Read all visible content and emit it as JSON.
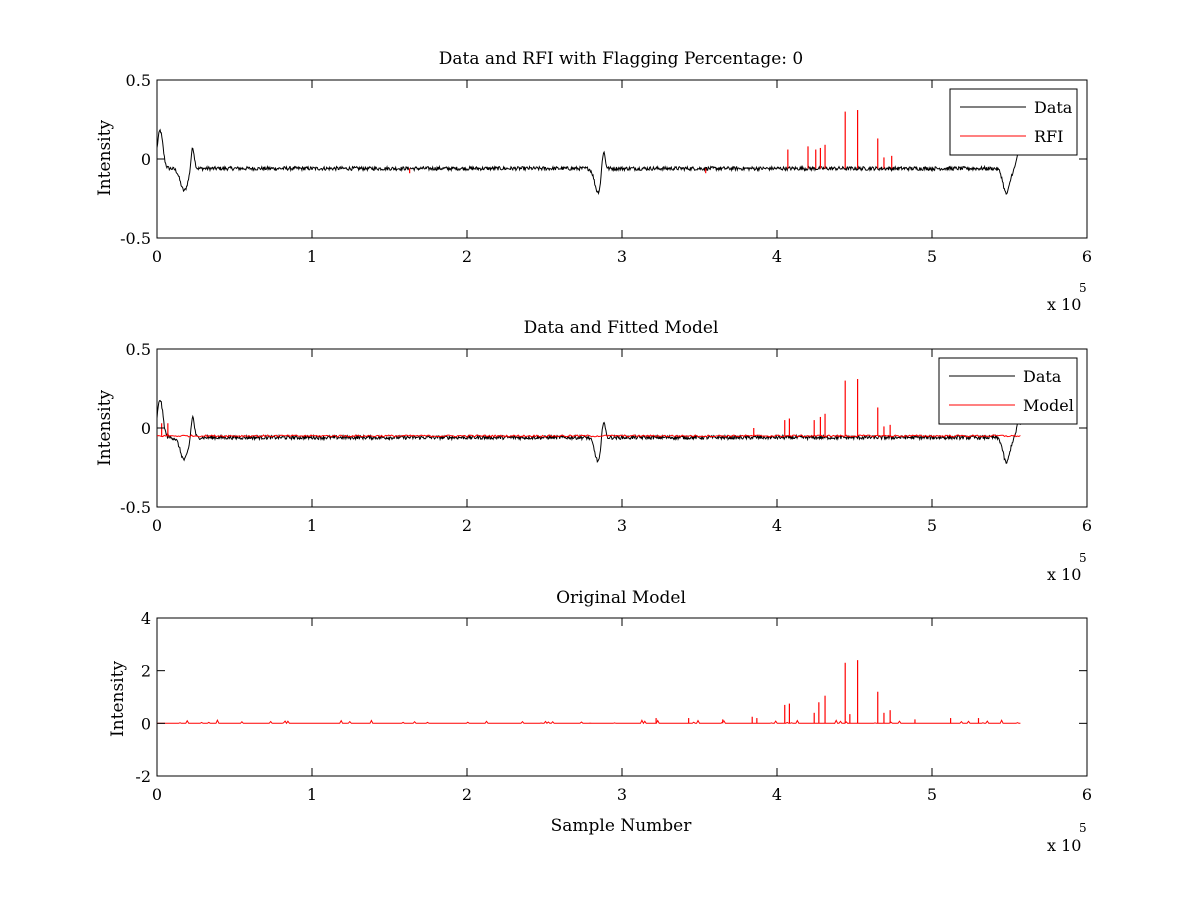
{
  "chart_data": [
    {
      "type": "line",
      "title": "Data and RFI with Flagging Percentage: 0",
      "xlabel": "",
      "ylabel": "Intensity",
      "xlim": [
        0,
        600000
      ],
      "ylim": [
        -0.5,
        0.5
      ],
      "x_ticks": [
        "0",
        "1",
        "2",
        "3",
        "4",
        "5",
        "6"
      ],
      "y_ticks": [
        "0.5",
        "0",
        "-0.5"
      ],
      "x_multiplier": "x 10",
      "x_multiplier_exp": "5",
      "legend_position": "top-right",
      "series": [
        {
          "name": "Data",
          "color": "#000000",
          "baseline": -0.06,
          "noise": 0.012,
          "dips": [
            {
              "x": 0,
              "kind": "bump",
              "depth": 0.25
            },
            {
              "x": 18000,
              "kind": "dip",
              "depth": 0.14
            },
            {
              "x": 23000,
              "kind": "bump",
              "depth": 0.15
            },
            {
              "x": 285000,
              "kind": "dip",
              "depth": 0.15
            },
            {
              "x": 288000,
              "kind": "bump",
              "depth": 0.13
            },
            {
              "x": 548000,
              "kind": "dip",
              "depth": 0.16
            },
            {
              "x": 556000,
              "kind": "bump",
              "depth": 0.06
            }
          ],
          "x_end": 557000
        },
        {
          "name": "RFI",
          "color": "#ff0000",
          "spikes": [
            {
              "x": 163000,
              "y": -0.09
            },
            {
              "x": 354000,
              "y": -0.09
            },
            {
              "x": 407000,
              "y": 0.06
            },
            {
              "x": 420000,
              "y": 0.08
            },
            {
              "x": 425000,
              "y": 0.06
            },
            {
              "x": 428000,
              "y": 0.07
            },
            {
              "x": 431000,
              "y": 0.09
            },
            {
              "x": 444000,
              "y": 0.3
            },
            {
              "x": 452000,
              "y": 0.31
            },
            {
              "x": 465000,
              "y": 0.13
            },
            {
              "x": 469000,
              "y": 0.01
            },
            {
              "x": 474000,
              "y": 0.02
            }
          ]
        }
      ]
    },
    {
      "type": "line",
      "title": "Data and Fitted Model",
      "xlabel": "",
      "ylabel": "Intensity",
      "xlim": [
        0,
        600000
      ],
      "ylim": [
        -0.5,
        0.5
      ],
      "x_ticks": [
        "0",
        "1",
        "2",
        "3",
        "4",
        "5",
        "6"
      ],
      "y_ticks": [
        "0.5",
        "0",
        "-0.5"
      ],
      "x_multiplier": "x 10",
      "x_multiplier_exp": "5",
      "legend_position": "top-right",
      "series": [
        {
          "name": "Data",
          "color": "#000000",
          "baseline": -0.06,
          "noise": 0.012,
          "x_end": 557000
        },
        {
          "name": "Model",
          "color": "#ff0000",
          "baseline": -0.05,
          "x_end": 557000,
          "spikes": [
            {
              "x": 3000,
              "y": 0.03
            },
            {
              "x": 7000,
              "y": 0.03
            },
            {
              "x": 385000,
              "y": 0.0
            },
            {
              "x": 405000,
              "y": 0.05
            },
            {
              "x": 408000,
              "y": 0.06
            },
            {
              "x": 424000,
              "y": 0.05
            },
            {
              "x": 428000,
              "y": 0.07
            },
            {
              "x": 431000,
              "y": 0.09
            },
            {
              "x": 444000,
              "y": 0.3
            },
            {
              "x": 452000,
              "y": 0.31
            },
            {
              "x": 465000,
              "y": 0.13
            },
            {
              "x": 469000,
              "y": 0.01
            },
            {
              "x": 473000,
              "y": 0.02
            }
          ]
        }
      ]
    },
    {
      "type": "line",
      "title": "Original Model",
      "xlabel": "Sample Number",
      "ylabel": "Intensity",
      "xlim": [
        0,
        600000
      ],
      "ylim": [
        -2,
        4
      ],
      "x_ticks": [
        "0",
        "1",
        "2",
        "3",
        "4",
        "5",
        "6"
      ],
      "y_ticks": [
        "4",
        "2",
        "0",
        "-2"
      ],
      "x_multiplier": "x 10",
      "x_multiplier_exp": "5",
      "series": [
        {
          "name": "",
          "color": "#ff0000",
          "baseline": 0,
          "x_end": 557000,
          "spikes": [
            {
              "x": 322000,
              "y": 0.2
            },
            {
              "x": 343000,
              "y": 0.2
            },
            {
              "x": 365000,
              "y": 0.15
            },
            {
              "x": 384000,
              "y": 0.25
            },
            {
              "x": 387000,
              "y": 0.2
            },
            {
              "x": 405000,
              "y": 0.7
            },
            {
              "x": 408000,
              "y": 0.75
            },
            {
              "x": 424000,
              "y": 0.4
            },
            {
              "x": 427000,
              "y": 0.8
            },
            {
              "x": 431000,
              "y": 1.05
            },
            {
              "x": 444000,
              "y": 2.3
            },
            {
              "x": 447000,
              "y": 0.35
            },
            {
              "x": 452000,
              "y": 2.4
            },
            {
              "x": 465000,
              "y": 1.2
            },
            {
              "x": 469000,
              "y": 0.4
            },
            {
              "x": 473000,
              "y": 0.5
            },
            {
              "x": 489000,
              "y": 0.15
            },
            {
              "x": 512000,
              "y": 0.2
            },
            {
              "x": 530000,
              "y": 0.2
            }
          ]
        }
      ]
    }
  ]
}
